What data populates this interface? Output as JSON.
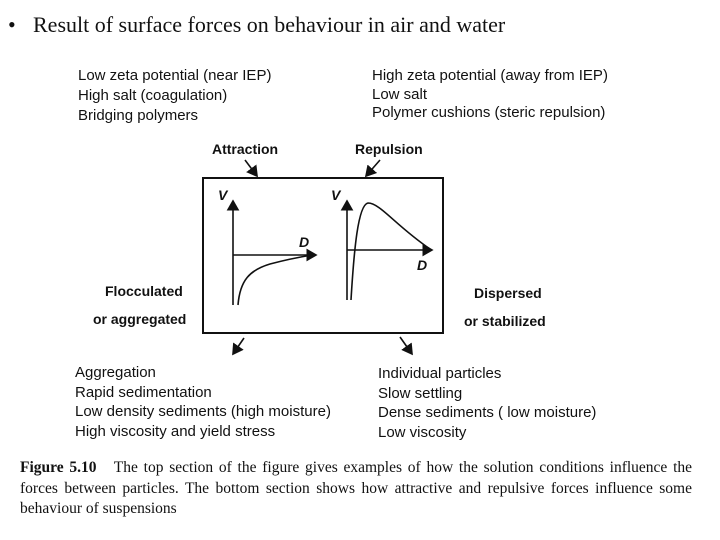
{
  "slide_title": {
    "bullet": "•",
    "text": "Result of surface forces on behaviour in air and water"
  },
  "conditions": {
    "left": [
      "Low zeta potential (near IEP)",
      "High salt (coagulation)",
      "Bridging polymers"
    ],
    "right": [
      "High zeta potential (away from IEP)",
      "Low salt",
      "Polymer cushions (steric repulsion)"
    ]
  },
  "forces": {
    "attraction": "Attraction",
    "repulsion": "Repulsion"
  },
  "graphs": {
    "left": {
      "y_axis": "V",
      "x_axis": "D"
    },
    "right": {
      "y_axis": "V",
      "x_axis": "D"
    }
  },
  "states": {
    "left": [
      "Flocculated",
      "or aggregated"
    ],
    "right": [
      "Dispersed",
      "or stabilized"
    ]
  },
  "outcomes": {
    "left": [
      "Aggregation",
      "Rapid sedimentation",
      "Low density sediments (high moisture)",
      "High viscosity and yield stress"
    ],
    "right": [
      "Individual particles",
      "Slow settling",
      "Dense sediments ( low moisture)",
      "Low viscosity"
    ]
  },
  "caption": {
    "label": "Figure 5.10",
    "text": "The top section of the figure gives examples of how the solution conditions influence the forces between particles. The bottom section shows how attractive and repulsive forces influence some behaviour of suspensions"
  }
}
